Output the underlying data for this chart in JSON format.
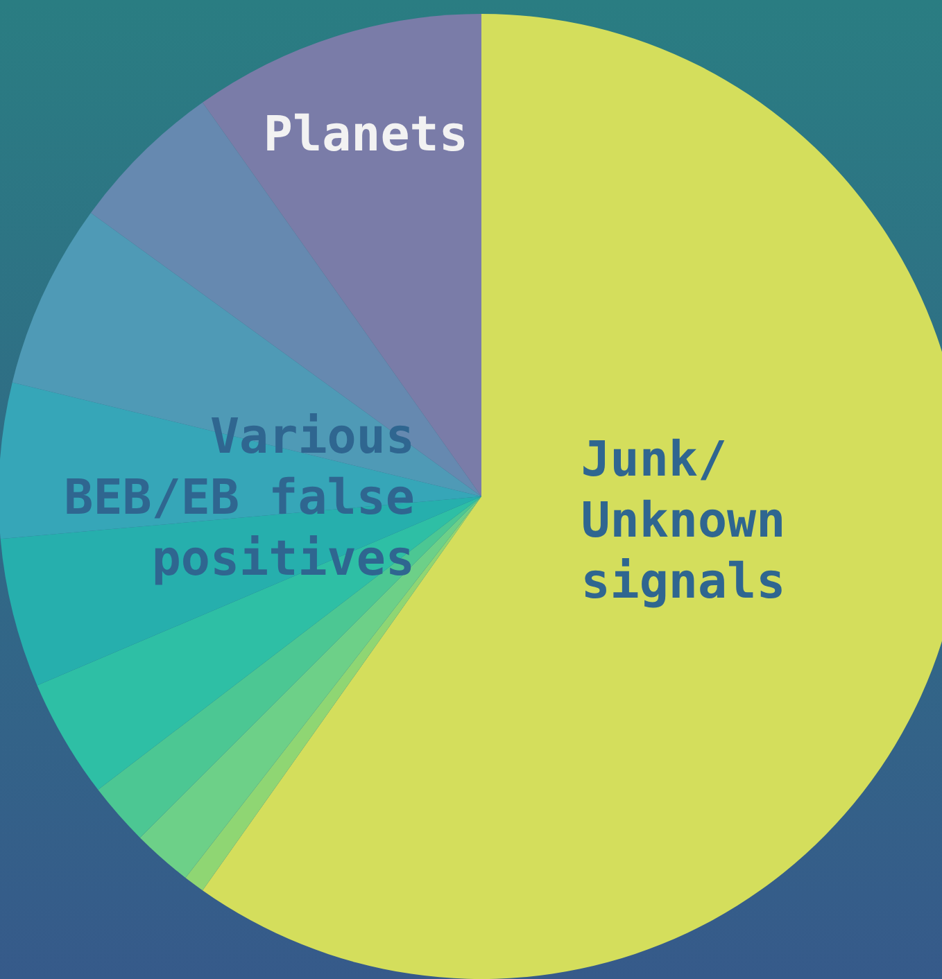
{
  "chart_data": {
    "type": "pie",
    "categories": [
      "Junk/\nUnknown\nsignals",
      null,
      null,
      null,
      null,
      null,
      null,
      null,
      null,
      "Planets"
    ],
    "values": [
      59.8,
      0.7,
      2.0,
      2.1,
      4.0,
      5.0,
      5.2,
      6.2,
      5.2,
      9.8
    ],
    "colors": [
      "#d4de5c",
      "#8fd673",
      "#6dd088",
      "#4cc793",
      "#2ebfa5",
      "#26afad",
      "#36a6b8",
      "#4f9ab6",
      "#6689b0",
      "#7a7ca8"
    ],
    "annotations": [
      "Various\nBEB/EB false\npositives"
    ]
  }
}
